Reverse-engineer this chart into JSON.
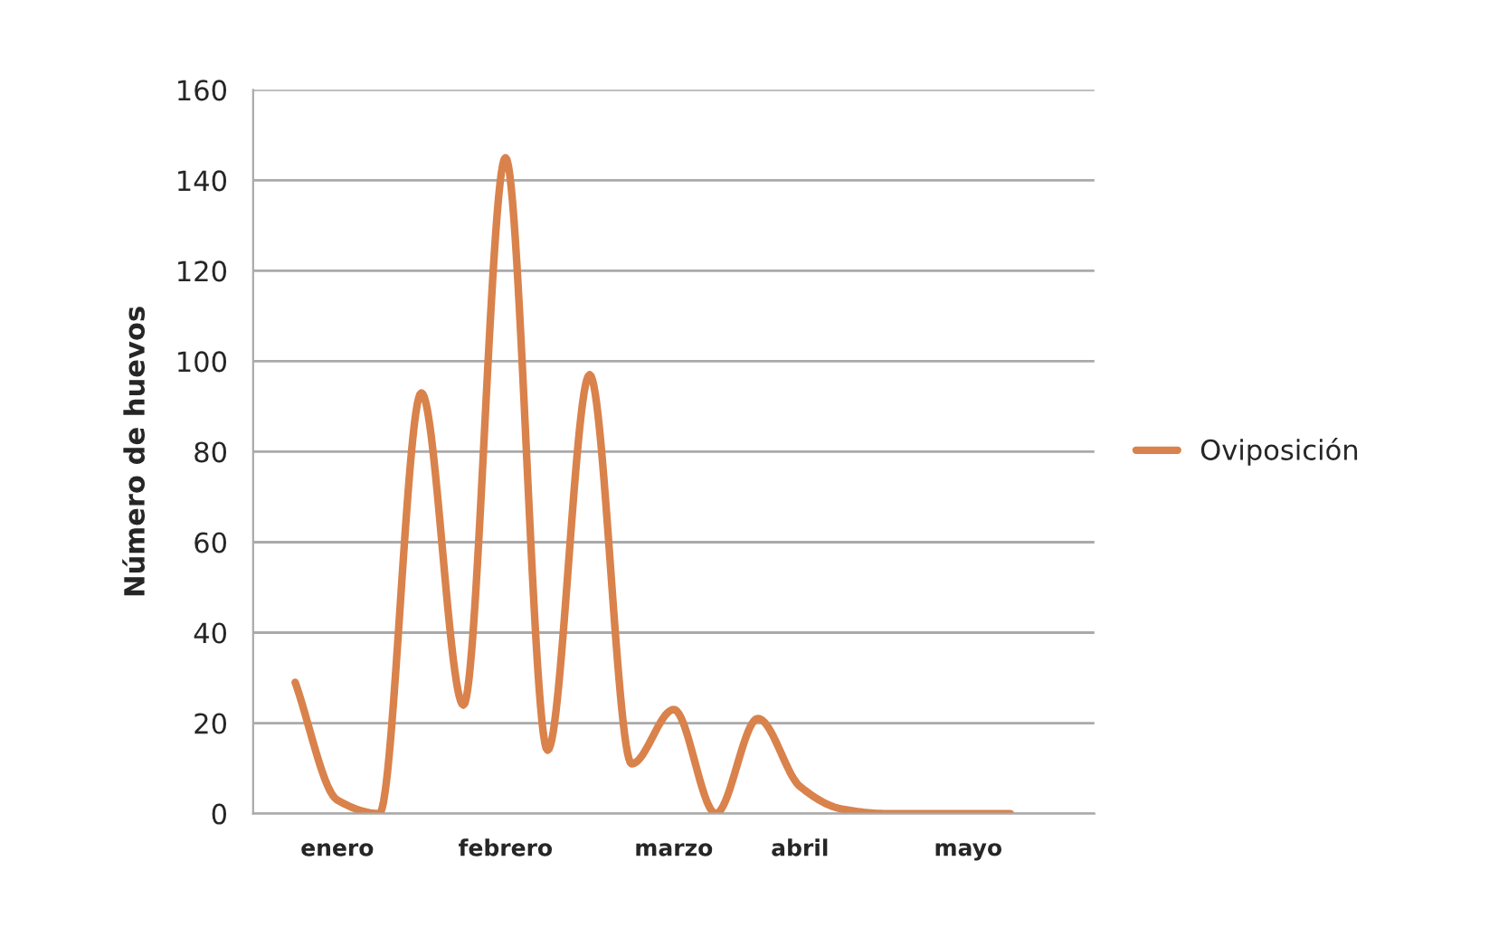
{
  "chart_data": {
    "type": "line",
    "ylabel": "Número de huevos",
    "categories": [
      null,
      "enero",
      null,
      null,
      null,
      "febrero",
      null,
      null,
      null,
      "marzo",
      null,
      null,
      "abril",
      null,
      null,
      null,
      "mayo",
      null
    ],
    "series": [
      {
        "name": "Oviposición",
        "color": "#d9824b",
        "values": [
          29,
          3,
          0,
          93,
          24,
          145,
          14,
          97,
          11,
          23,
          0,
          21,
          6,
          1,
          0,
          0,
          0,
          0
        ]
      }
    ],
    "ylim": [
      0,
      160
    ],
    "yticks": [
      0,
      20,
      40,
      60,
      80,
      100,
      120,
      140,
      160
    ],
    "grid": "y",
    "legend": "right",
    "line_style": "solid",
    "marker": "none"
  }
}
